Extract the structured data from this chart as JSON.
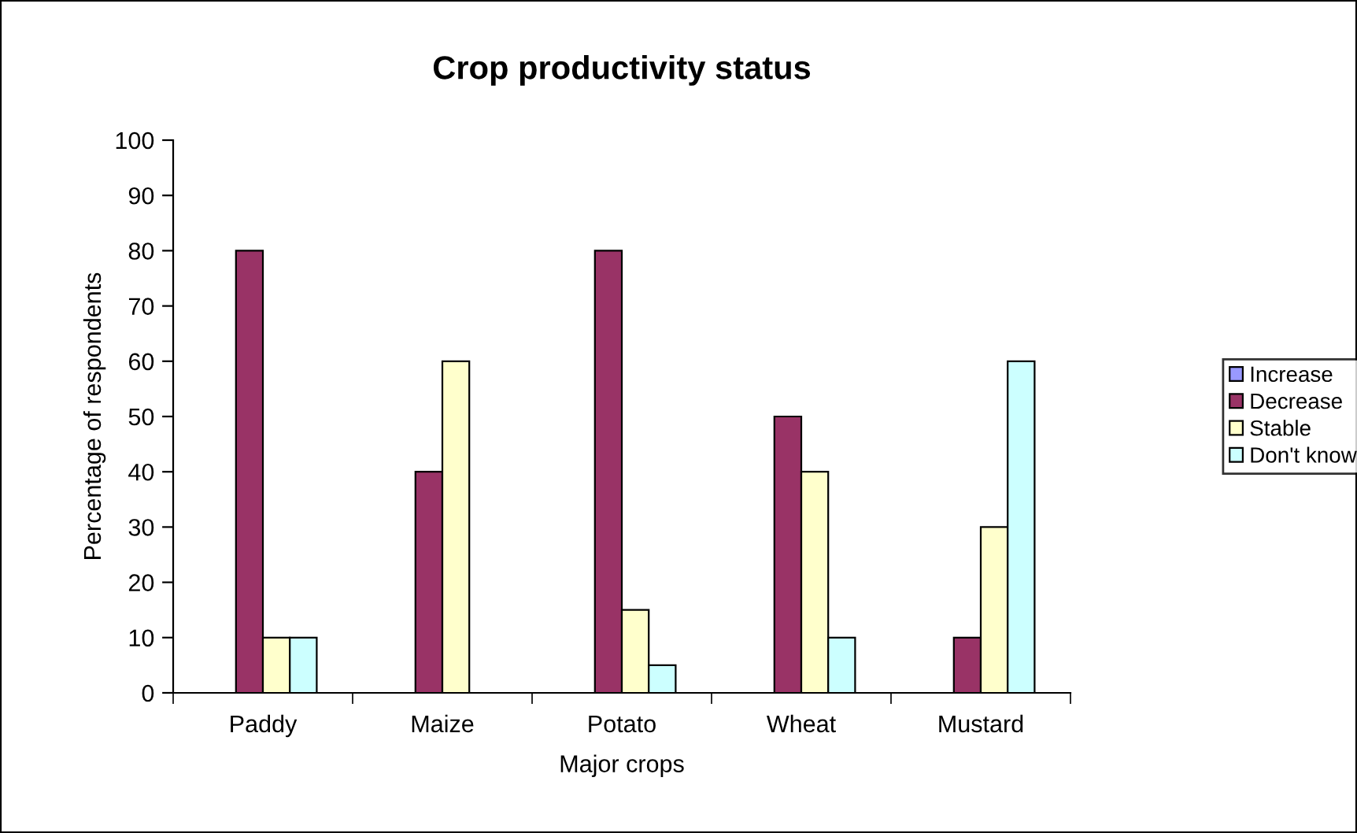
{
  "chart_data": {
    "type": "bar",
    "title": "Crop productivity status",
    "xlabel": "Major crops",
    "ylabel": "Percentage of respondents",
    "categories": [
      "Paddy",
      "Maize",
      "Potato",
      "Wheat",
      "Mustard"
    ],
    "series": [
      {
        "name": "Increase",
        "color": "#9999ff",
        "values": [
          0,
          0,
          0,
          0,
          0
        ]
      },
      {
        "name": "Decrease",
        "color": "#993366",
        "values": [
          80,
          40,
          80,
          50,
          10
        ]
      },
      {
        "name": "Stable",
        "color": "#ffffcc",
        "values": [
          10,
          60,
          15,
          40,
          30
        ]
      },
      {
        "name": "Don't know",
        "color": "#ccffff",
        "values": [
          10,
          0,
          5,
          10,
          60
        ]
      }
    ],
    "ylim": [
      0,
      100
    ],
    "yticks": [
      0,
      10,
      20,
      30,
      40,
      50,
      60,
      70,
      80,
      90,
      100
    ],
    "grid": false,
    "legend": "right"
  }
}
